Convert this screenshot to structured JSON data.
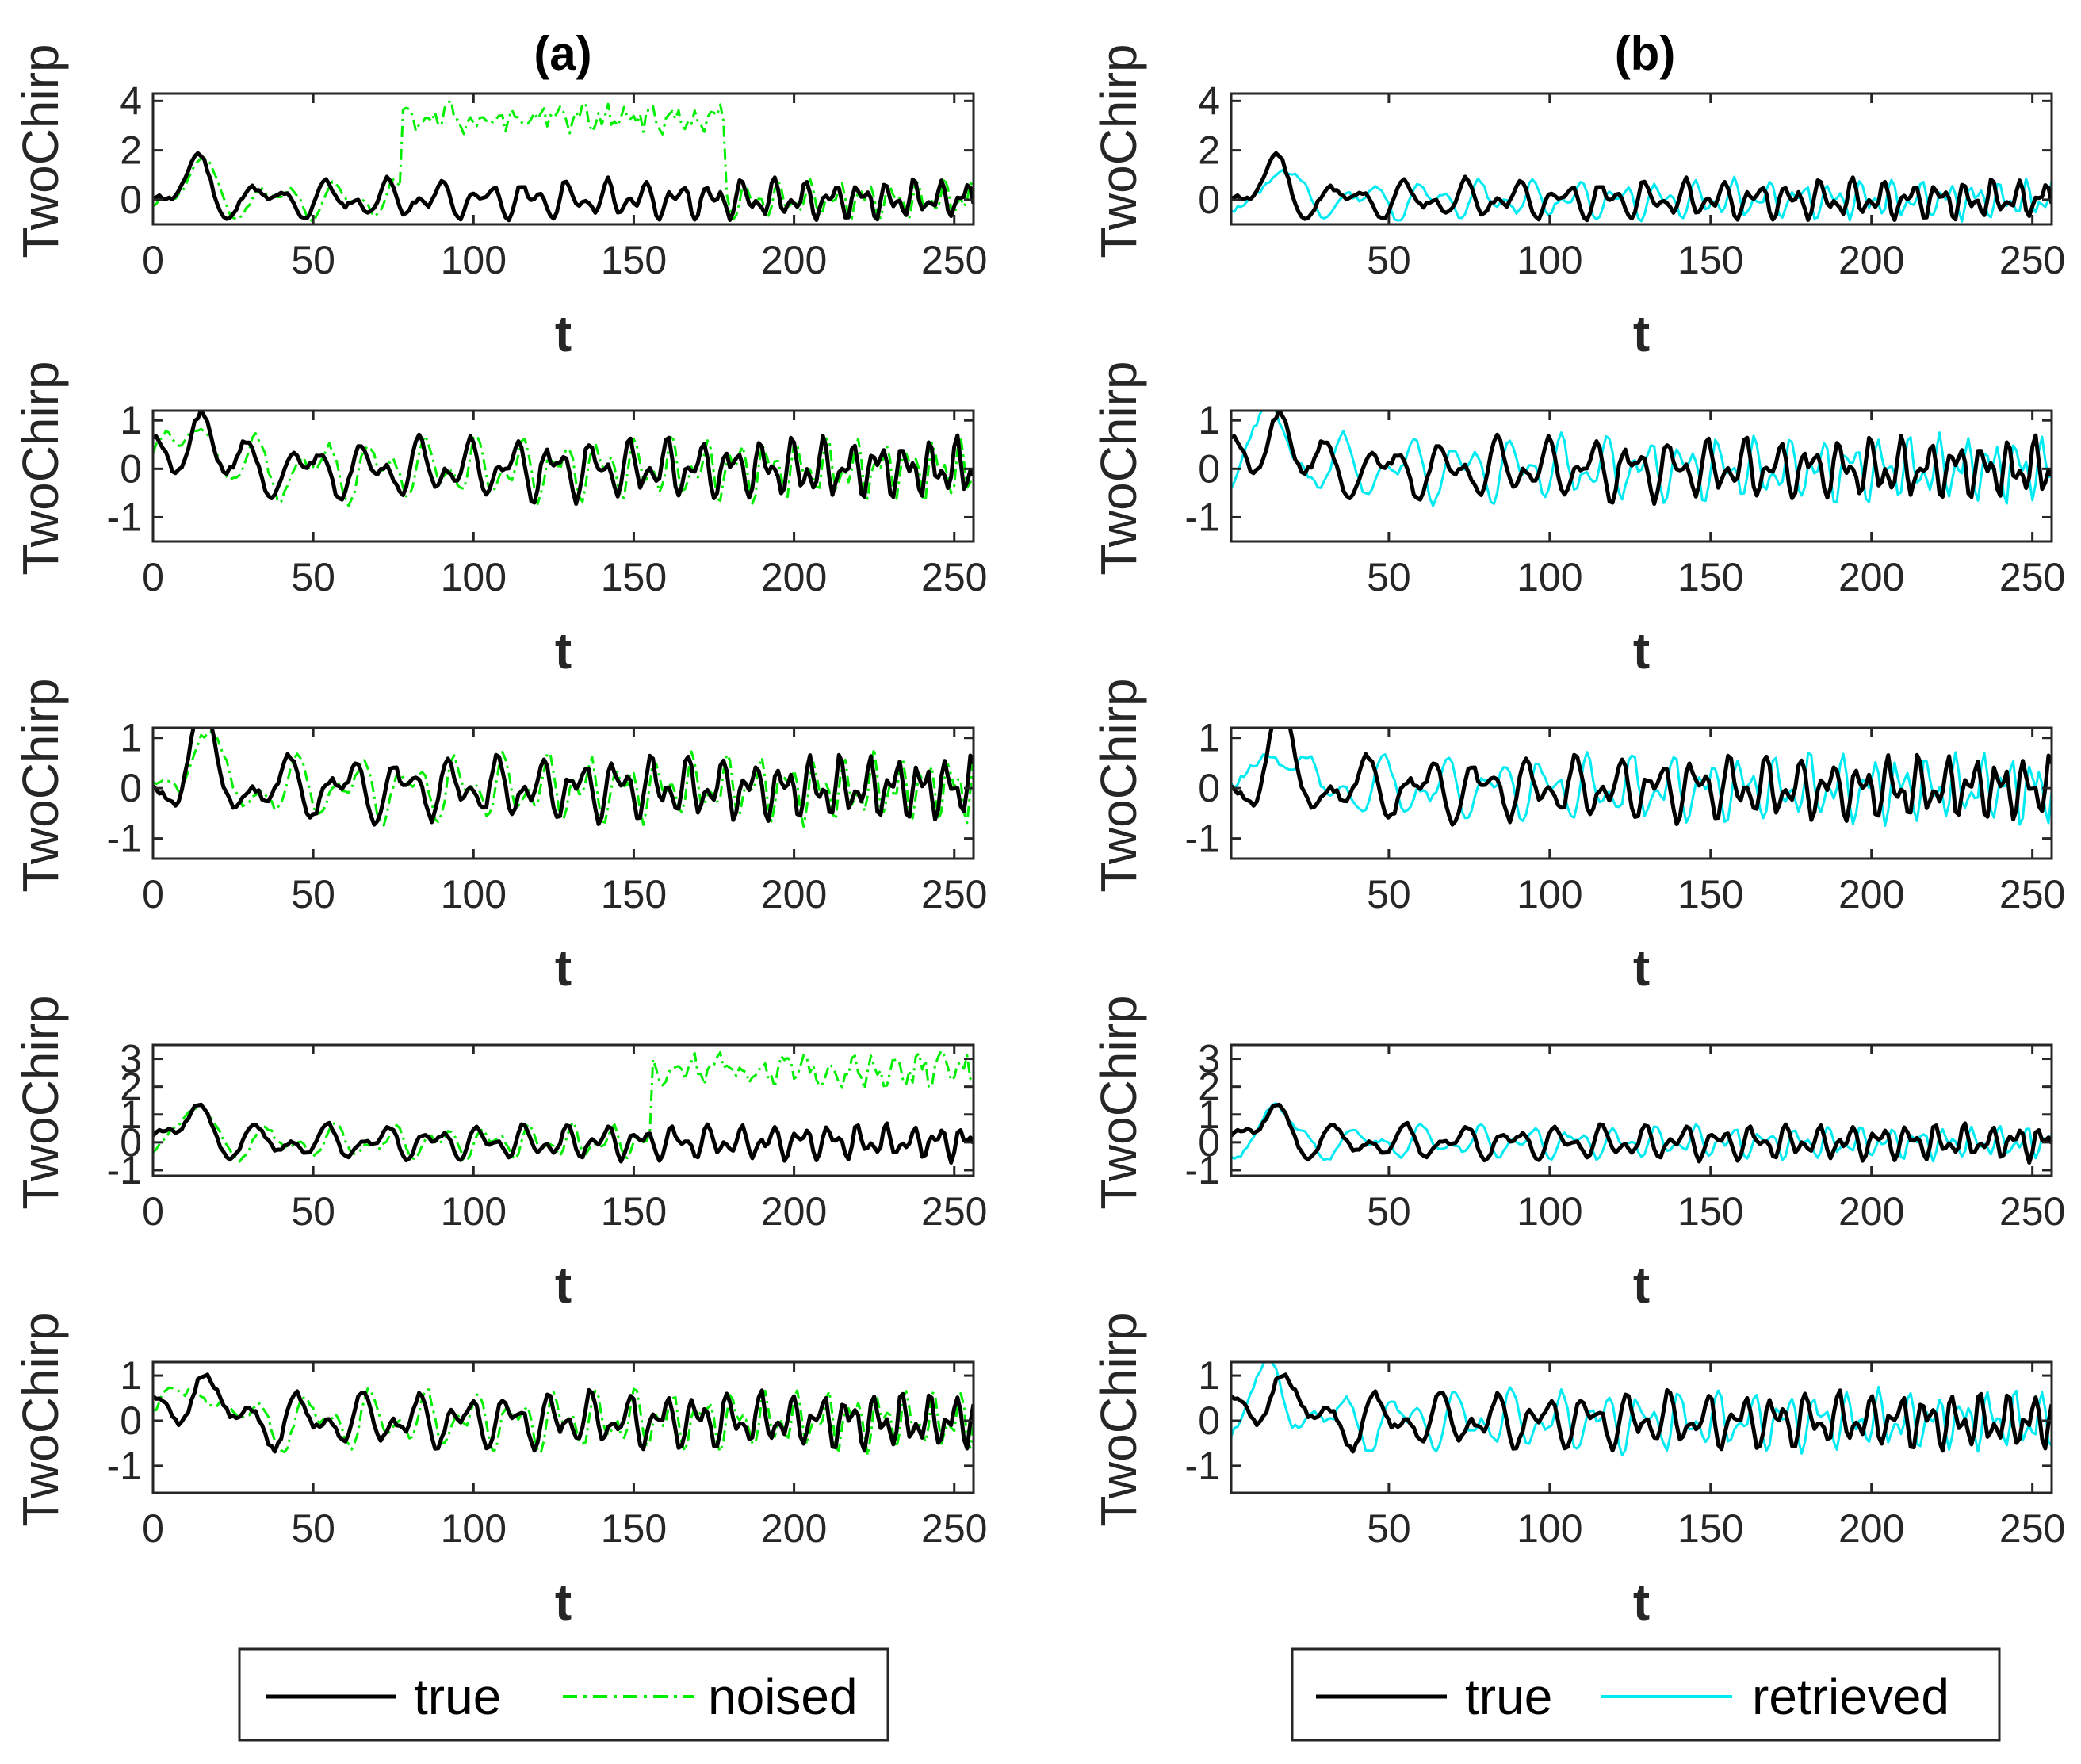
{
  "figure": {
    "panel_a_title": "(a)",
    "panel_b_title": "(b)"
  },
  "legend_a": {
    "entries": [
      "true",
      "noised"
    ]
  },
  "legend_b": {
    "entries": [
      "true",
      "retrieved"
    ]
  },
  "colors": {
    "true": "#000000",
    "noised": "#00ee00",
    "retrieved": "#00eaf2"
  },
  "chart_data": [
    {
      "type": "line",
      "panel": "a",
      "row": 1,
      "title": "(a)",
      "xlabel": "t",
      "ylabel": "TwoChirp",
      "xlim": [
        0,
        256
      ],
      "ylim": [
        -1,
        4.3
      ],
      "xticks": [
        0,
        50,
        100,
        150,
        200,
        250
      ],
      "yticks": [
        0,
        2,
        4
      ],
      "series": [
        {
          "name": "true",
          "color": "#000000",
          "seed": 11,
          "amp": 1.0
        },
        {
          "name": "noised",
          "color": "#00ee00",
          "style": "dashdot",
          "seed": 12,
          "amp": 1.0,
          "outlier": {
            "start": 78,
            "end": 178,
            "level": 3.3,
            "spread": 0.9
          }
        }
      ]
    },
    {
      "type": "line",
      "panel": "a",
      "row": 2,
      "xlabel": "t",
      "ylabel": "TwoChirp",
      "xlim": [
        0,
        256
      ],
      "ylim": [
        -1.5,
        1.2
      ],
      "xticks": [
        0,
        50,
        100,
        150,
        200,
        250
      ],
      "yticks": [
        -1,
        0,
        1
      ],
      "series": [
        {
          "name": "true",
          "color": "#000000",
          "seed": 21,
          "amp": 0.8
        },
        {
          "name": "noised",
          "color": "#00ee00",
          "style": "dashdot",
          "seed": 22,
          "amp": 0.85
        }
      ]
    },
    {
      "type": "line",
      "panel": "a",
      "row": 3,
      "xlabel": "t",
      "ylabel": "TwoChirp",
      "xlim": [
        0,
        256
      ],
      "ylim": [
        -1.4,
        1.2
      ],
      "xticks": [
        0,
        50,
        100,
        150,
        200,
        250
      ],
      "yticks": [
        -1,
        0,
        1
      ],
      "series": [
        {
          "name": "true",
          "color": "#000000",
          "seed": 31,
          "amp": 0.8
        },
        {
          "name": "noised",
          "color": "#00ee00",
          "style": "dashdot",
          "seed": 32,
          "amp": 0.85
        }
      ]
    },
    {
      "type": "line",
      "panel": "a",
      "row": 4,
      "xlabel": "t",
      "ylabel": "TwoChirp",
      "xlim": [
        0,
        256
      ],
      "ylim": [
        -1.2,
        3.5
      ],
      "xticks": [
        0,
        50,
        100,
        150,
        200,
        250
      ],
      "yticks": [
        -1,
        0,
        1,
        2,
        3
      ],
      "series": [
        {
          "name": "true",
          "color": "#000000",
          "seed": 41,
          "amp": 0.8
        },
        {
          "name": "noised",
          "color": "#00ee00",
          "style": "dashdot",
          "seed": 42,
          "amp": 0.8,
          "outlier": {
            "start": 156,
            "end": 256,
            "level": 2.6,
            "spread": 0.8
          }
        }
      ]
    },
    {
      "type": "line",
      "panel": "a",
      "row": 5,
      "xlabel": "t",
      "ylabel": "TwoChirp",
      "xlim": [
        0,
        256
      ],
      "ylim": [
        -1.6,
        1.3
      ],
      "xticks": [
        0,
        50,
        100,
        150,
        200,
        250
      ],
      "yticks": [
        -1,
        0,
        1
      ],
      "series": [
        {
          "name": "true",
          "color": "#000000",
          "seed": 51,
          "amp": 0.8
        },
        {
          "name": "noised",
          "color": "#00ee00",
          "style": "dashdot",
          "seed": 52,
          "amp": 0.85
        }
      ]
    },
    {
      "type": "line",
      "panel": "b",
      "row": 1,
      "title": "(b)",
      "xlabel": "t",
      "ylabel": "TwoChirp",
      "xlim": [
        1,
        256
      ],
      "ylim": [
        -1,
        4.3
      ],
      "xticks": [
        50,
        100,
        150,
        200,
        250
      ],
      "yticks": [
        0,
        2,
        4
      ],
      "series": [
        {
          "name": "true",
          "color": "#000000",
          "seed": 11,
          "amp": 1.0
        },
        {
          "name": "retrieved",
          "color": "#00eaf2",
          "seed": 13,
          "amp": 1.0
        }
      ]
    },
    {
      "type": "line",
      "panel": "b",
      "row": 2,
      "xlabel": "t",
      "ylabel": "TwoChirp",
      "xlim": [
        1,
        256
      ],
      "ylim": [
        -1.5,
        1.2
      ],
      "xticks": [
        50,
        100,
        150,
        200,
        250
      ],
      "yticks": [
        -1,
        0,
        1
      ],
      "series": [
        {
          "name": "true",
          "color": "#000000",
          "seed": 21,
          "amp": 0.8
        },
        {
          "name": "retrieved",
          "color": "#00eaf2",
          "seed": 23,
          "amp": 0.85
        }
      ]
    },
    {
      "type": "line",
      "panel": "b",
      "row": 3,
      "xlabel": "t",
      "ylabel": "TwoChirp",
      "xlim": [
        1,
        256
      ],
      "ylim": [
        -1.4,
        1.2
      ],
      "xticks": [
        50,
        100,
        150,
        200,
        250
      ],
      "yticks": [
        -1,
        0,
        1
      ],
      "series": [
        {
          "name": "true",
          "color": "#000000",
          "seed": 31,
          "amp": 0.8
        },
        {
          "name": "retrieved",
          "color": "#00eaf2",
          "seed": 33,
          "amp": 0.85
        }
      ]
    },
    {
      "type": "line",
      "panel": "b",
      "row": 4,
      "xlabel": "t",
      "ylabel": "TwoChirp",
      "xlim": [
        1,
        256
      ],
      "ylim": [
        -1.2,
        3.5
      ],
      "xticks": [
        50,
        100,
        150,
        200,
        250
      ],
      "yticks": [
        -1,
        0,
        1,
        2,
        3
      ],
      "series": [
        {
          "name": "true",
          "color": "#000000",
          "seed": 41,
          "amp": 0.8
        },
        {
          "name": "retrieved",
          "color": "#00eaf2",
          "seed": 43,
          "amp": 0.75
        }
      ]
    },
    {
      "type": "line",
      "panel": "b",
      "row": 5,
      "xlabel": "t",
      "ylabel": "TwoChirp",
      "xlim": [
        1,
        256
      ],
      "ylim": [
        -1.6,
        1.3
      ],
      "xticks": [
        50,
        100,
        150,
        200,
        250
      ],
      "yticks": [
        -1,
        0,
        1
      ],
      "series": [
        {
          "name": "true",
          "color": "#000000",
          "seed": 51,
          "amp": 0.8
        },
        {
          "name": "retrieved",
          "color": "#00eaf2",
          "seed": 53,
          "amp": 0.85
        }
      ]
    }
  ]
}
